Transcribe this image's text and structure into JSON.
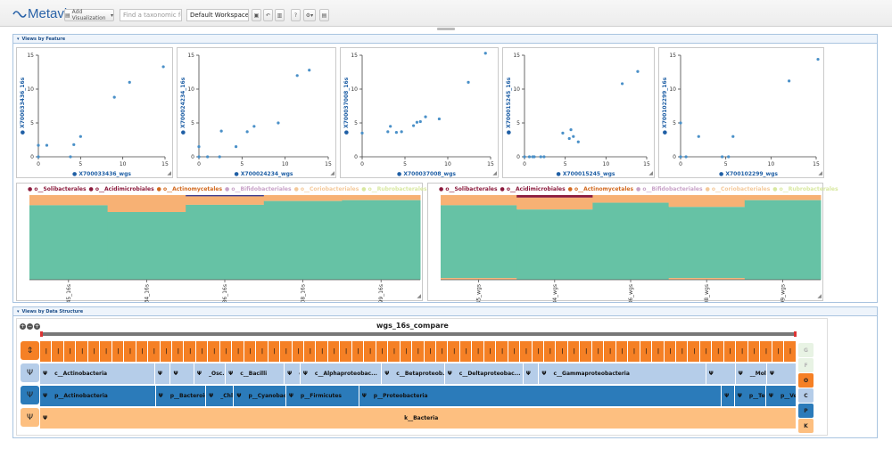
{
  "toolbar": {
    "logo": "Metaviz",
    "add_visualization": "Add Visualization",
    "search_placeholder": "Find a taxonomic feature",
    "workspace": "Default Workspace"
  },
  "feature_panel": {
    "title": "Views by Feature"
  },
  "structure_panel": {
    "title": "Views by Data Structure"
  },
  "scatters": [
    {
      "ylabel": "X700033436_16s",
      "xlabel": "X700033436_wgs",
      "xticks": [
        "0",
        "5",
        "10",
        "15"
      ],
      "yticks": [
        "0",
        "5",
        "10",
        "15"
      ],
      "points": [
        [
          0,
          0
        ],
        [
          0,
          1.7
        ],
        [
          1,
          1.7
        ],
        [
          3.8,
          0
        ],
        [
          4.2,
          1.8
        ],
        [
          5,
          3
        ],
        [
          9,
          8.8
        ],
        [
          10.8,
          11
        ],
        [
          14.8,
          13.3
        ]
      ]
    },
    {
      "ylabel": "X700024234_16s",
      "xlabel": "X700024234_wgs",
      "xticks": [
        "0",
        "5",
        "10",
        "15"
      ],
      "yticks": [
        "0",
        "5",
        "10",
        "15"
      ],
      "points": [
        [
          0,
          0
        ],
        [
          0,
          1.5
        ],
        [
          1,
          0
        ],
        [
          2.4,
          0
        ],
        [
          2.6,
          3.8
        ],
        [
          4.3,
          1.5
        ],
        [
          5.6,
          3.7
        ],
        [
          6.4,
          4.5
        ],
        [
          9.2,
          5
        ],
        [
          11.4,
          12
        ],
        [
          12.8,
          12.8
        ]
      ]
    },
    {
      "ylabel": "X700037008_16s",
      "xlabel": "X700037008_wgs",
      "xticks": [
        "0",
        "5",
        "10",
        "15"
      ],
      "yticks": [
        "0",
        "5",
        "10",
        "15"
      ],
      "points": [
        [
          0,
          3.5
        ],
        [
          3,
          3.7
        ],
        [
          3.3,
          4.5
        ],
        [
          4,
          3.6
        ],
        [
          4.6,
          3.7
        ],
        [
          6,
          4.6
        ],
        [
          6.4,
          5.1
        ],
        [
          6.8,
          5.2
        ],
        [
          7.4,
          5.9
        ],
        [
          9,
          5.6
        ],
        [
          12.4,
          11
        ],
        [
          14.4,
          15.3
        ]
      ]
    },
    {
      "ylabel": "X700015245_16s",
      "xlabel": "X700015245_wgs",
      "xticks": [
        "0",
        "5",
        "10",
        "15"
      ],
      "yticks": [
        "0",
        "5",
        "10",
        "15"
      ],
      "points": [
        [
          0,
          0
        ],
        [
          0.6,
          0
        ],
        [
          1,
          0
        ],
        [
          1.2,
          0
        ],
        [
          2,
          0
        ],
        [
          2.4,
          0
        ],
        [
          4.7,
          3.5
        ],
        [
          5.5,
          2.7
        ],
        [
          5.7,
          4
        ],
        [
          6,
          3
        ],
        [
          6.6,
          2.2
        ],
        [
          12,
          10.8
        ],
        [
          13.9,
          12.6
        ]
      ]
    },
    {
      "ylabel": "X700102299_16s",
      "xlabel": "X700102299_wgs",
      "xticks": [
        "0",
        "5",
        "10",
        "15"
      ],
      "yticks": [
        "0",
        "5",
        "10",
        "15"
      ],
      "points": [
        [
          0,
          0
        ],
        [
          0,
          5
        ],
        [
          0.6,
          0
        ],
        [
          2,
          3
        ],
        [
          4.6,
          0
        ],
        [
          5.3,
          0
        ],
        [
          5.8,
          3
        ],
        [
          12,
          11.2
        ],
        [
          15.2,
          14.4
        ]
      ]
    }
  ],
  "legend": [
    {
      "name": "o__Solibacterales",
      "color": "#8b1a3c"
    },
    {
      "name": "o__Acidimicrobiales",
      "color": "#8b1a3c"
    },
    {
      "name": "o__Actinomycetales",
      "color": "#d2691e"
    },
    {
      "name": "o__Bifidobacteriales",
      "color": "#c8a2c8"
    },
    {
      "name": "o__Coriobacteriales",
      "color": "#f4c99a"
    },
    {
      "name": "o__Rubrobacterales",
      "color": "#d8e8a0"
    }
  ],
  "stack_left": {
    "labels": [
      "45_16s",
      "34_16s",
      "36_16s",
      "08_16s",
      "99_16s"
    ],
    "segments": [
      [
        {
          "c": "#f7b174",
          "v": 0.12
        },
        {
          "c": "#66c2a5",
          "v": 0.88
        }
      ],
      [
        {
          "c": "#f7b174",
          "v": 0.2
        },
        {
          "c": "#66c2a5",
          "v": 0.8
        }
      ],
      [
        {
          "c": "#3a3a8c",
          "v": 0.015
        },
        {
          "c": "#f7b174",
          "v": 0.1
        },
        {
          "c": "#66c2a5",
          "v": 0.885
        }
      ],
      [
        {
          "c": "#f7b174",
          "v": 0.07
        },
        {
          "c": "#66c2a5",
          "v": 0.93
        }
      ],
      [
        {
          "c": "#f7b174",
          "v": 0.06
        },
        {
          "c": "#66c2a5",
          "v": 0.94
        }
      ]
    ]
  },
  "stack_right": {
    "labels": [
      "45_wgs",
      "34_wgs",
      "36_wgs",
      "08_wgs",
      "99_wgs"
    ],
    "segments": [
      [
        {
          "c": "#f7b174",
          "v": 0.12
        },
        {
          "c": "#66c2a5",
          "v": 0.86
        },
        {
          "c": "#f7b174",
          "v": 0.02
        }
      ],
      [
        {
          "c": "#8b1a3c",
          "v": 0.03
        },
        {
          "c": "#f7b174",
          "v": 0.14
        },
        {
          "c": "#66c2a5",
          "v": 0.83
        }
      ],
      [
        {
          "c": "#f7b174",
          "v": 0.09
        },
        {
          "c": "#66c2a5",
          "v": 0.91
        }
      ],
      [
        {
          "c": "#f7b174",
          "v": 0.14
        },
        {
          "c": "#66c2a5",
          "v": 0.84
        },
        {
          "c": "#f7b174",
          "v": 0.02
        }
      ],
      [
        {
          "c": "#f7b174",
          "v": 0.06
        },
        {
          "c": "#66c2a5",
          "v": 0.94
        }
      ]
    ]
  },
  "icicle": {
    "title": "wgs_16s_compare",
    "controls": [
      "+",
      "−",
      "+"
    ],
    "row_class": [
      {
        "label": "c__Actinobacteria",
        "w": 117,
        "c": "#b5cde9"
      },
      {
        "label": "c...",
        "w": 16,
        "c": "#b5cde9"
      },
      {
        "label": "",
        "w": 24,
        "c": "#b5cde9"
      },
      {
        "label": "_Osc...",
        "w": 32,
        "c": "#b5cde9"
      },
      {
        "label": "c__Bacilli",
        "w": 60,
        "c": "#b5cde9"
      },
      {
        "label": "c...",
        "w": 16,
        "c": "#b5cde9"
      },
      {
        "label": "c__Alphaproteobac...",
        "w": 83,
        "c": "#b5cde9"
      },
      {
        "label": "c__Betaproteob...",
        "w": 64,
        "c": "#b5cde9"
      },
      {
        "label": "c__Deltaproteobac...",
        "w": 80,
        "c": "#b5cde9"
      },
      {
        "label": "c...",
        "w": 16,
        "c": "#b5cde9"
      },
      {
        "label": "c__Gammaproteobacteria",
        "w": 170,
        "c": "#b5cde9"
      },
      {
        "label": "",
        "w": 30,
        "c": "#b5cde9"
      },
      {
        "label": "__Mol...",
        "w": 32,
        "c": "#b5cde9"
      },
      {
        "label": "",
        "w": 30,
        "c": "#b5cde9"
      }
    ],
    "row_phylum": [
      {
        "label": "p__Actinobacteria",
        "w": 133,
        "c": "#2b7bba",
        "fc": "#111"
      },
      {
        "label": "p__Bacteroid...",
        "w": 58,
        "c": "#2b7bba",
        "fc": "#111"
      },
      {
        "label": "_Chl...",
        "w": 32,
        "c": "#2b7bba",
        "fc": "#111"
      },
      {
        "label": "p__Cyanobact...",
        "w": 60,
        "c": "#2b7bba",
        "fc": "#111"
      },
      {
        "label": "p__Firmicutes",
        "w": 84,
        "c": "#2b7bba",
        "fc": "#111"
      },
      {
        "label": "p__Proteobacteria",
        "w": 417,
        "c": "#2b7bba",
        "fc": "#111"
      },
      {
        "label": "",
        "w": 15,
        "c": "#2b7bba",
        "fc": "#111"
      },
      {
        "label": "p__Teneri...",
        "w": 36,
        "c": "#2b7bba",
        "fc": "#111"
      },
      {
        "label": "p__Ver...",
        "w": 35,
        "c": "#2b7bba",
        "fc": "#111"
      }
    ],
    "kingdom": "k__Bacteria",
    "side_buttons": [
      {
        "label": "G",
        "bg": "#e8f3e4",
        "fg": "#b5b5b5"
      },
      {
        "label": "F",
        "bg": "#e8f3e4",
        "fg": "#b5b5b5"
      },
      {
        "label": "O",
        "bg": "#f58025",
        "fg": "#222"
      },
      {
        "label": "C",
        "bg": "#b5cde9",
        "fg": "#222"
      },
      {
        "label": "P",
        "bg": "#2b7bba",
        "fg": "#222"
      },
      {
        "label": "K",
        "bg": "#fdbf80",
        "fg": "#222"
      }
    ],
    "colors": {
      "order": "#f58025",
      "class": "#b5cde9",
      "phylum": "#2b7bba",
      "kingdom": "#fdbf80"
    }
  }
}
